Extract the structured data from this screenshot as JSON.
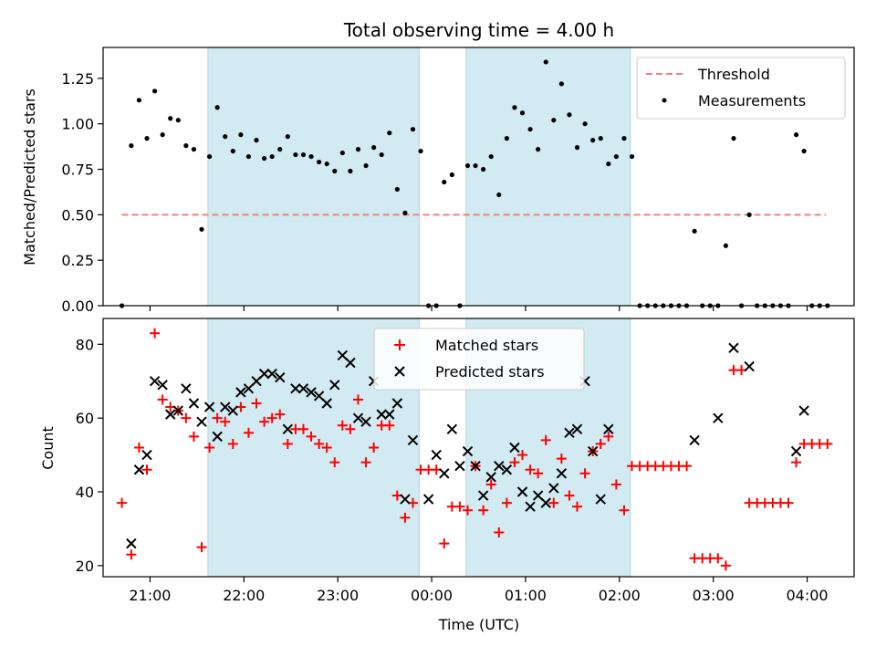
{
  "chart_data": [
    {
      "type": "scatter",
      "title": "Total observing time = 4.00 h",
      "xlabel": "",
      "ylabel": "Matched/Predicted stars",
      "xlim": [
        20.5,
        4.5
      ],
      "ylim": [
        0,
        1.42
      ],
      "yticks": [
        "0.00",
        "0.25",
        "0.50",
        "0.75",
        "1.00",
        "1.25"
      ],
      "legend": {
        "placement": "upper-right",
        "entries": [
          "Threshold",
          "Measurements"
        ]
      },
      "threshold": {
        "name": "Threshold",
        "value": 0.5,
        "x_range": [
          "20:42",
          "04:12"
        ],
        "color": "#f08080"
      },
      "shaded_regions": [
        [
          "21:37",
          "23:52"
        ],
        [
          "00:22",
          "02:07"
        ]
      ],
      "shade_color": "#add8e6",
      "series": [
        {
          "name": "Measurements",
          "color": "#000000",
          "points": [
            [
              "20:42",
              0.0
            ],
            [
              "20:48",
              0.88
            ],
            [
              "20:53",
              1.13
            ],
            [
              "20:58",
              0.92
            ],
            [
              "21:03",
              1.18
            ],
            [
              "21:08",
              0.94
            ],
            [
              "21:13",
              1.03
            ],
            [
              "21:18",
              1.02
            ],
            [
              "21:23",
              0.88
            ],
            [
              "21:28",
              0.86
            ],
            [
              "21:33",
              0.42
            ],
            [
              "21:38",
              0.82
            ],
            [
              "21:43",
              1.09
            ],
            [
              "21:48",
              0.93
            ],
            [
              "21:53",
              0.85
            ],
            [
              "21:58",
              0.94
            ],
            [
              "22:03",
              0.82
            ],
            [
              "22:08",
              0.91
            ],
            [
              "22:13",
              0.81
            ],
            [
              "22:18",
              0.82
            ],
            [
              "22:23",
              0.86
            ],
            [
              "22:28",
              0.93
            ],
            [
              "22:33",
              0.83
            ],
            [
              "22:38",
              0.83
            ],
            [
              "22:43",
              0.82
            ],
            [
              "22:48",
              0.79
            ],
            [
              "22:53",
              0.78
            ],
            [
              "22:58",
              0.74
            ],
            [
              "23:03",
              0.84
            ],
            [
              "23:08",
              0.74
            ],
            [
              "23:13",
              0.86
            ],
            [
              "23:18",
              0.77
            ],
            [
              "23:23",
              0.87
            ],
            [
              "23:28",
              0.83
            ],
            [
              "23:33",
              0.95
            ],
            [
              "23:38",
              0.64
            ],
            [
              "23:43",
              0.51
            ],
            [
              "23:48",
              0.97
            ],
            [
              "23:53",
              0.85
            ],
            [
              "23:58",
              0.0
            ],
            [
              "00:03",
              0.0
            ],
            [
              "00:08",
              0.68
            ],
            [
              "00:13",
              0.72
            ],
            [
              "00:18",
              0.0
            ],
            [
              "00:23",
              0.77
            ],
            [
              "00:28",
              0.77
            ],
            [
              "00:33",
              0.75
            ],
            [
              "00:38",
              0.82
            ],
            [
              "00:43",
              0.61
            ],
            [
              "00:48",
              0.92
            ],
            [
              "00:53",
              1.09
            ],
            [
              "00:58",
              1.06
            ],
            [
              "01:03",
              0.97
            ],
            [
              "01:08",
              0.86
            ],
            [
              "01:13",
              1.34
            ],
            [
              "01:18",
              1.02
            ],
            [
              "01:23",
              1.22
            ],
            [
              "01:28",
              1.05
            ],
            [
              "01:33",
              0.87
            ],
            [
              "01:38",
              1.0
            ],
            [
              "01:43",
              0.91
            ],
            [
              "01:48",
              0.92
            ],
            [
              "01:53",
              0.78
            ],
            [
              "01:58",
              0.82
            ],
            [
              "02:03",
              0.92
            ],
            [
              "02:08",
              0.82
            ],
            [
              "02:13",
              0.0
            ],
            [
              "02:18",
              0.0
            ],
            [
              "02:23",
              0.0
            ],
            [
              "02:28",
              0.0
            ],
            [
              "02:33",
              0.0
            ],
            [
              "02:38",
              0.0
            ],
            [
              "02:43",
              0.0
            ],
            [
              "02:48",
              0.41
            ],
            [
              "02:53",
              0.0
            ],
            [
              "02:58",
              0.0
            ],
            [
              "03:03",
              0.0
            ],
            [
              "03:08",
              0.33
            ],
            [
              "03:13",
              0.92
            ],
            [
              "03:18",
              0.0
            ],
            [
              "03:23",
              0.5
            ],
            [
              "03:28",
              0.0
            ],
            [
              "03:33",
              0.0
            ],
            [
              "03:38",
              0.0
            ],
            [
              "03:43",
              0.0
            ],
            [
              "03:48",
              0.0
            ],
            [
              "03:53",
              0.94
            ],
            [
              "03:58",
              0.85
            ],
            [
              "04:03",
              0.0
            ],
            [
              "04:08",
              0.0
            ],
            [
              "04:13",
              0.0
            ]
          ]
        }
      ]
    },
    {
      "type": "scatter",
      "title": "",
      "xlabel": "Time (UTC)",
      "ylabel": "Count",
      "xlim": [
        20.5,
        4.5
      ],
      "ylim": [
        17,
        87
      ],
      "yticks": [
        "20",
        "40",
        "60",
        "80"
      ],
      "xticks": [
        "21:00",
        "22:00",
        "23:00",
        "00:00",
        "01:00",
        "02:00",
        "03:00",
        "04:00"
      ],
      "legend": {
        "placement": "upper-center",
        "entries": [
          "Matched stars",
          "Predicted stars"
        ]
      },
      "shaded_regions": [
        [
          "21:37",
          "23:52"
        ],
        [
          "00:22",
          "02:07"
        ]
      ],
      "shade_color": "#add8e6",
      "series": [
        {
          "name": "Matched stars",
          "marker": "+",
          "color": "#ff0000",
          "points": [
            [
              "20:42",
              37
            ],
            [
              "20:48",
              23
            ],
            [
              "20:53",
              52
            ],
            [
              "20:58",
              46
            ],
            [
              "21:03",
              83
            ],
            [
              "21:08",
              65
            ],
            [
              "21:13",
              63
            ],
            [
              "21:18",
              62
            ],
            [
              "21:23",
              60
            ],
            [
              "21:28",
              55
            ],
            [
              "21:33",
              25
            ],
            [
              "21:38",
              52
            ],
            [
              "21:43",
              60
            ],
            [
              "21:48",
              59
            ],
            [
              "21:53",
              53
            ],
            [
              "21:58",
              63
            ],
            [
              "22:03",
              56
            ],
            [
              "22:08",
              64
            ],
            [
              "22:13",
              59
            ],
            [
              "22:18",
              60
            ],
            [
              "22:23",
              61
            ],
            [
              "22:28",
              53
            ],
            [
              "22:33",
              57
            ],
            [
              "22:38",
              57
            ],
            [
              "22:43",
              55
            ],
            [
              "22:48",
              53
            ],
            [
              "22:53",
              52
            ],
            [
              "22:58",
              48
            ],
            [
              "23:03",
              58
            ],
            [
              "23:08",
              57
            ],
            [
              "23:13",
              65
            ],
            [
              "23:18",
              48
            ],
            [
              "23:23",
              52
            ],
            [
              "23:28",
              58
            ],
            [
              "23:33",
              58
            ],
            [
              "23:38",
              39
            ],
            [
              "23:43",
              33
            ],
            [
              "23:48",
              37
            ],
            [
              "23:53",
              46
            ],
            [
              "23:58",
              46
            ],
            [
              "00:03",
              46
            ],
            [
              "00:08",
              26
            ],
            [
              "00:13",
              36
            ],
            [
              "00:18",
              36
            ],
            [
              "00:23",
              35
            ],
            [
              "00:28",
              47
            ],
            [
              "00:33",
              35
            ],
            [
              "00:38",
              42
            ],
            [
              "00:43",
              29
            ],
            [
              "00:48",
              37
            ],
            [
              "00:53",
              48
            ],
            [
              "00:58",
              50
            ],
            [
              "01:03",
              46
            ],
            [
              "01:08",
              45
            ],
            [
              "01:13",
              54
            ],
            [
              "01:18",
              37
            ],
            [
              "01:23",
              49
            ],
            [
              "01:28",
              39
            ],
            [
              "01:33",
              36
            ],
            [
              "01:38",
              45
            ],
            [
              "01:43",
              51
            ],
            [
              "01:48",
              53
            ],
            [
              "01:53",
              55
            ],
            [
              "01:58",
              42
            ],
            [
              "02:03",
              35
            ],
            [
              "02:08",
              47
            ],
            [
              "02:13",
              47
            ],
            [
              "02:18",
              47
            ],
            [
              "02:23",
              47
            ],
            [
              "02:28",
              47
            ],
            [
              "02:33",
              47
            ],
            [
              "02:38",
              47
            ],
            [
              "02:43",
              47
            ],
            [
              "02:48",
              22
            ],
            [
              "02:53",
              22
            ],
            [
              "02:58",
              22
            ],
            [
              "03:03",
              22
            ],
            [
              "03:08",
              20
            ],
            [
              "03:13",
              73
            ],
            [
              "03:18",
              73
            ],
            [
              "03:23",
              37
            ],
            [
              "03:28",
              37
            ],
            [
              "03:33",
              37
            ],
            [
              "03:38",
              37
            ],
            [
              "03:43",
              37
            ],
            [
              "03:48",
              37
            ],
            [
              "03:53",
              48
            ],
            [
              "03:58",
              53
            ],
            [
              "04:03",
              53
            ],
            [
              "04:08",
              53
            ],
            [
              "04:13",
              53
            ]
          ]
        },
        {
          "name": "Predicted stars",
          "marker": "x",
          "color": "#000000",
          "points": [
            [
              "20:48",
              26
            ],
            [
              "20:53",
              46
            ],
            [
              "20:58",
              50
            ],
            [
              "21:03",
              70
            ],
            [
              "21:08",
              69
            ],
            [
              "21:13",
              61
            ],
            [
              "21:18",
              62
            ],
            [
              "21:23",
              68
            ],
            [
              "21:28",
              64
            ],
            [
              "21:33",
              59
            ],
            [
              "21:38",
              63
            ],
            [
              "21:43",
              55
            ],
            [
              "21:48",
              63
            ],
            [
              "21:53",
              62
            ],
            [
              "21:58",
              67
            ],
            [
              "22:03",
              68
            ],
            [
              "22:08",
              70
            ],
            [
              "22:13",
              72
            ],
            [
              "22:18",
              72
            ],
            [
              "22:23",
              71
            ],
            [
              "22:28",
              57
            ],
            [
              "22:33",
              68
            ],
            [
              "22:38",
              68
            ],
            [
              "22:43",
              67
            ],
            [
              "22:48",
              66
            ],
            [
              "22:53",
              64
            ],
            [
              "22:58",
              69
            ],
            [
              "23:03",
              77
            ],
            [
              "23:08",
              75
            ],
            [
              "23:13",
              60
            ],
            [
              "23:18",
              59
            ],
            [
              "23:23",
              70
            ],
            [
              "23:28",
              61
            ],
            [
              "23:33",
              61
            ],
            [
              "23:38",
              64
            ],
            [
              "23:43",
              38
            ],
            [
              "23:48",
              54
            ],
            [
              "23:58",
              38
            ],
            [
              "00:03",
              50
            ],
            [
              "00:08",
              45
            ],
            [
              "00:13",
              57
            ],
            [
              "00:18",
              47
            ],
            [
              "00:23",
              51
            ],
            [
              "00:28",
              47
            ],
            [
              "00:33",
              39
            ],
            [
              "00:38",
              44
            ],
            [
              "00:43",
              47
            ],
            [
              "00:48",
              46
            ],
            [
              "00:53",
              52
            ],
            [
              "00:58",
              40
            ],
            [
              "01:03",
              36
            ],
            [
              "01:08",
              39
            ],
            [
              "01:13",
              37
            ],
            [
              "01:18",
              41
            ],
            [
              "01:23",
              45
            ],
            [
              "01:28",
              56
            ],
            [
              "01:33",
              57
            ],
            [
              "01:38",
              70
            ],
            [
              "01:43",
              51
            ],
            [
              "01:48",
              38
            ],
            [
              "01:53",
              57
            ],
            [
              "02:48",
              54
            ],
            [
              "03:03",
              60
            ],
            [
              "03:13",
              79
            ],
            [
              "03:23",
              74
            ],
            [
              "03:53",
              51
            ],
            [
              "03:58",
              62
            ]
          ]
        }
      ]
    }
  ]
}
